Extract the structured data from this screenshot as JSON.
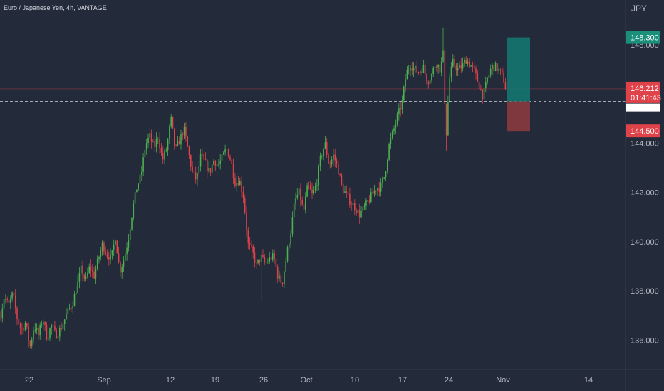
{
  "chart_data": {
    "type": "candlestick",
    "title": "Euro / Japanese Yen, 4h, VANTAGE",
    "currency": "JPY",
    "ylim": [
      134.8,
      149.3
    ],
    "y_ticks": [
      136,
      138,
      140,
      142,
      144,
      146,
      148
    ],
    "y_tick_labels": [
      "136.000",
      "138.000",
      "140.000",
      "142.000",
      "144.000",
      "146.000",
      "148.000"
    ],
    "x_labels": [
      "22",
      "Sep",
      "12",
      "19",
      "26",
      "Oct",
      "10",
      "17",
      "24",
      "Nov",
      "14"
    ],
    "current_price": {
      "value": 146.212,
      "label": "146.212",
      "countdown": "01:41:43"
    },
    "crosshair_price": 145.7,
    "position": {
      "target": {
        "value": 148.3,
        "label": "148.300"
      },
      "entry": 145.7,
      "stop": {
        "value": 144.5,
        "label": "144.500"
      }
    },
    "keypoints": [
      [
        0,
        136.9
      ],
      [
        6,
        137.8
      ],
      [
        12,
        137.4
      ],
      [
        18,
        137.9
      ],
      [
        24,
        136.9
      ],
      [
        30,
        136.4
      ],
      [
        36,
        136.7
      ],
      [
        42,
        135.7
      ],
      [
        48,
        136.6
      ],
      [
        54,
        136.2
      ],
      [
        60,
        136.9
      ],
      [
        66,
        136.1
      ],
      [
        72,
        136.6
      ],
      [
        78,
        136.2
      ],
      [
        84,
        136.4
      ],
      [
        90,
        136.8
      ],
      [
        96,
        137.2
      ],
      [
        102,
        137.5
      ],
      [
        108,
        138.2
      ],
      [
        114,
        138.9
      ],
      [
        120,
        138.4
      ],
      [
        126,
        139.0
      ],
      [
        132,
        138.6
      ],
      [
        138,
        139.3
      ],
      [
        144,
        139.9
      ],
      [
        150,
        139.5
      ],
      [
        156,
        139.3
      ],
      [
        162,
        140.2
      ],
      [
        168,
        138.8
      ],
      [
        174,
        139.3
      ],
      [
        180,
        140.1
      ],
      [
        186,
        141.3
      ],
      [
        192,
        142.2
      ],
      [
        198,
        142.7
      ],
      [
        204,
        143.9
      ],
      [
        210,
        144.3
      ],
      [
        216,
        143.8
      ],
      [
        222,
        144.3
      ],
      [
        228,
        143.3
      ],
      [
        234,
        143.8
      ],
      [
        240,
        145.0
      ],
      [
        246,
        143.7
      ],
      [
        252,
        144.1
      ],
      [
        258,
        144.6
      ],
      [
        264,
        143.7
      ],
      [
        270,
        142.8
      ],
      [
        276,
        142.5
      ],
      [
        282,
        143.5
      ],
      [
        288,
        143.2
      ],
      [
        294,
        142.8
      ],
      [
        300,
        143.3
      ],
      [
        306,
        143.1
      ],
      [
        312,
        143.4
      ],
      [
        318,
        143.8
      ],
      [
        324,
        143.3
      ],
      [
        330,
        142.4
      ],
      [
        336,
        142.5
      ],
      [
        342,
        141.8
      ],
      [
        348,
        139.9
      ],
      [
        354,
        139.6
      ],
      [
        360,
        139.0
      ],
      [
        366,
        139.4
      ],
      [
        372,
        139.1
      ],
      [
        378,
        139.3
      ],
      [
        384,
        139.4
      ],
      [
        390,
        138.6
      ],
      [
        396,
        138.3
      ],
      [
        402,
        139.4
      ],
      [
        408,
        140.4
      ],
      [
        414,
        141.7
      ],
      [
        420,
        142.0
      ],
      [
        426,
        141.2
      ],
      [
        432,
        142.3
      ],
      [
        438,
        141.9
      ],
      [
        444,
        142.3
      ],
      [
        450,
        143.4
      ],
      [
        456,
        144.0
      ],
      [
        462,
        143.1
      ],
      [
        468,
        143.5
      ],
      [
        474,
        143.0
      ],
      [
        480,
        142.2
      ],
      [
        486,
        141.9
      ],
      [
        492,
        141.6
      ],
      [
        498,
        141.4
      ],
      [
        504,
        141.1
      ],
      [
        510,
        141.3
      ],
      [
        516,
        141.6
      ],
      [
        522,
        141.9
      ],
      [
        528,
        142.2
      ],
      [
        534,
        142.2
      ],
      [
        540,
        142.7
      ],
      [
        546,
        143.9
      ],
      [
        552,
        144.5
      ],
      [
        558,
        145.1
      ],
      [
        564,
        145.6
      ],
      [
        570,
        146.8
      ],
      [
        576,
        147.2
      ],
      [
        582,
        147.0
      ],
      [
        588,
        146.9
      ],
      [
        594,
        147.1
      ],
      [
        600,
        146.5
      ],
      [
        606,
        146.8
      ],
      [
        612,
        147.3
      ],
      [
        618,
        147.0
      ],
      [
        622,
        147.6
      ],
      [
        624,
        145.9
      ],
      [
        627,
        144.2
      ],
      [
        630,
        146.5
      ],
      [
        636,
        147.3
      ],
      [
        642,
        147.0
      ],
      [
        648,
        147.1
      ],
      [
        654,
        147.4
      ],
      [
        660,
        147.2
      ],
      [
        666,
        146.9
      ],
      [
        672,
        146.4
      ],
      [
        678,
        145.9
      ],
      [
        684,
        146.6
      ],
      [
        690,
        147.1
      ],
      [
        696,
        147.1
      ],
      [
        702,
        146.9
      ],
      [
        706,
        146.7
      ],
      [
        710,
        146.2
      ]
    ]
  }
}
